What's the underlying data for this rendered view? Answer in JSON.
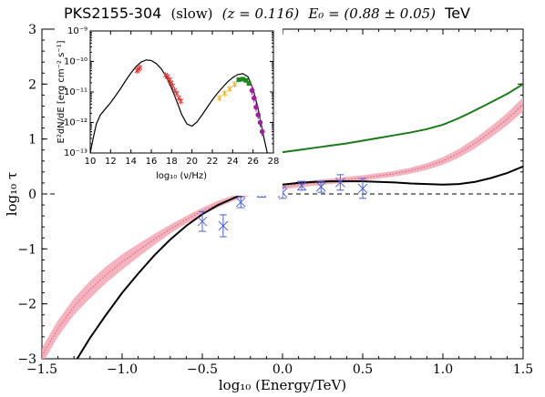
{
  "chart_data": [
    {
      "type": "line",
      "title": {
        "source": "PKS2155-304",
        "state": "(slow)",
        "redshift": "(z = 0.116)",
        "threshold": "E₀ = (0.88 ± 0.05)",
        "unit": "TeV"
      },
      "xlabel": "log₁₀ (Energy/TeV)",
      "ylabel": "log₁₀ τ",
      "xlim": [
        -1.5,
        1.5
      ],
      "ylim": [
        -3,
        3
      ],
      "xticks": [
        "−1.5",
        "−1.0",
        "−0.5",
        "0.0",
        "0.5",
        "1.0",
        "1.5"
      ],
      "yticks": [
        "−3",
        "−2",
        "−1",
        "0",
        "1",
        "2",
        "3"
      ],
      "reference_line": {
        "y": 0,
        "style": "dashed",
        "color": "#000000"
      },
      "band": {
        "color": "#f4a6b4",
        "median_color": "#c0606e",
        "x": [
          -1.5,
          -1.4,
          -1.3,
          -1.2,
          -1.1,
          -1.0,
          -0.9,
          -0.8,
          -0.7,
          -0.6,
          -0.5,
          -0.4,
          -0.3,
          -0.2,
          -0.1,
          0.0,
          0.1,
          0.2,
          0.3,
          0.4,
          0.5,
          0.6,
          0.7,
          0.8,
          0.9,
          1.0,
          1.1,
          1.2,
          1.3,
          1.4,
          1.5
        ],
        "lower": [
          -3.1,
          -2.6,
          -2.2,
          -1.9,
          -1.62,
          -1.38,
          -1.15,
          -0.93,
          -0.72,
          -0.54,
          -0.38,
          -0.24,
          -0.12,
          -0.03,
          0.03,
          0.08,
          0.12,
          0.15,
          0.18,
          0.21,
          0.24,
          0.28,
          0.32,
          0.37,
          0.44,
          0.53,
          0.66,
          0.83,
          1.03,
          1.25,
          1.5
        ],
        "median": [
          -2.95,
          -2.45,
          -2.05,
          -1.74,
          -1.47,
          -1.24,
          -1.03,
          -0.83,
          -0.64,
          -0.47,
          -0.31,
          -0.18,
          -0.07,
          0.02,
          0.08,
          0.13,
          0.17,
          0.2,
          0.23,
          0.26,
          0.29,
          0.33,
          0.37,
          0.43,
          0.5,
          0.6,
          0.74,
          0.92,
          1.13,
          1.36,
          1.63
        ],
        "upper": [
          -2.8,
          -2.3,
          -1.9,
          -1.58,
          -1.32,
          -1.1,
          -0.91,
          -0.73,
          -0.56,
          -0.4,
          -0.25,
          -0.12,
          -0.02,
          0.07,
          0.13,
          0.18,
          0.22,
          0.25,
          0.28,
          0.31,
          0.34,
          0.38,
          0.42,
          0.48,
          0.56,
          0.67,
          0.82,
          1.01,
          1.23,
          1.47,
          1.76
        ]
      },
      "series": [
        {
          "color": "#000000",
          "x": [
            -1.28,
            -1.2,
            -1.1,
            -1.0,
            -0.9,
            -0.8,
            -0.7,
            -0.6,
            -0.5,
            -0.4,
            -0.3,
            -0.2,
            -0.1,
            0.0,
            0.1,
            0.2,
            0.3,
            0.4,
            0.5,
            0.6,
            0.7,
            0.8,
            0.9,
            1.0,
            1.1,
            1.2,
            1.3,
            1.4,
            1.5
          ],
          "y": [
            -3.0,
            -2.62,
            -2.2,
            -1.8,
            -1.45,
            -1.12,
            -0.83,
            -0.58,
            -0.37,
            -0.2,
            -0.07,
            0.04,
            0.12,
            0.17,
            0.2,
            0.22,
            0.23,
            0.23,
            0.23,
            0.22,
            0.21,
            0.19,
            0.18,
            0.17,
            0.18,
            0.22,
            0.29,
            0.38,
            0.5
          ]
        },
        {
          "color": "#1a7a1a",
          "x": [
            0.0,
            0.1,
            0.2,
            0.3,
            0.4,
            0.5,
            0.6,
            0.7,
            0.8,
            0.9,
            1.0,
            1.1,
            1.2,
            1.3,
            1.4,
            1.5
          ],
          "y": [
            0.76,
            0.8,
            0.84,
            0.88,
            0.92,
            0.97,
            1.02,
            1.07,
            1.12,
            1.18,
            1.26,
            1.38,
            1.52,
            1.67,
            1.82,
            2.0
          ]
        }
      ],
      "points": {
        "color": "#5060e0",
        "x": [
          -0.5,
          -0.37,
          -0.26,
          -0.13,
          0.0,
          0.12,
          0.24,
          0.36,
          0.5
        ],
        "y": [
          -0.5,
          -0.58,
          -0.15,
          0.02,
          0.02,
          0.15,
          0.13,
          0.21,
          0.1
        ],
        "yerr": [
          0.18,
          0.2,
          0.1,
          0.08,
          0.1,
          0.08,
          0.1,
          0.14,
          0.18
        ],
        "xerr": [
          0.03,
          0.03,
          0.03,
          0.03,
          0.03,
          0.03,
          0.03,
          0.03,
          0.03
        ]
      }
    },
    {
      "type": "line",
      "title": "",
      "xlabel": "log₁₀ (ν/Hz)",
      "ylabel": "E²dN/dE [erg cm⁻² s⁻¹]",
      "xlim": [
        10,
        28
      ],
      "ylim_log10": [
        -13,
        -9
      ],
      "xticks": [
        "10",
        "12",
        "14",
        "16",
        "18",
        "20",
        "22",
        "24",
        "26",
        "28"
      ],
      "yticks": [
        "10⁻¹³",
        "10⁻¹²",
        "10⁻¹¹",
        "10⁻¹⁰",
        "10⁻⁹"
      ],
      "model": {
        "color": "#000000",
        "x": [
          10.0,
          10.3,
          10.6,
          11.0,
          11.5,
          12.0,
          12.5,
          13.0,
          13.5,
          14.0,
          14.5,
          15.0,
          15.5,
          16.0,
          16.5,
          17.0,
          17.5,
          18.0,
          18.5,
          19.0,
          19.5,
          20.0,
          20.5,
          21.0,
          21.5,
          22.0,
          22.5,
          23.0,
          23.5,
          24.0,
          24.5,
          25.0,
          25.5,
          26.0,
          26.5,
          27.0,
          27.4
        ],
        "y_log10": [
          -13.0,
          -12.5,
          -12.05,
          -11.75,
          -11.55,
          -11.35,
          -11.12,
          -10.88,
          -10.62,
          -10.38,
          -10.17,
          -10.02,
          -9.95,
          -9.97,
          -10.07,
          -10.25,
          -10.52,
          -10.88,
          -11.3,
          -11.75,
          -12.05,
          -12.12,
          -11.98,
          -11.75,
          -11.5,
          -11.26,
          -11.04,
          -10.85,
          -10.67,
          -10.53,
          -10.43,
          -10.4,
          -10.5,
          -10.9,
          -11.55,
          -12.4,
          -13.0
        ]
      },
      "data_groups": [
        {
          "color": "#e83030",
          "marker": "x",
          "x": [
            14.6,
            14.75,
            14.9
          ],
          "y_log10": [
            -10.3,
            -10.25,
            -10.2
          ]
        },
        {
          "color": "#e83030",
          "marker": "x",
          "x": [
            17.4,
            17.6,
            17.8,
            17.95,
            18.1,
            18.3,
            18.5,
            18.7,
            18.9
          ],
          "y_log10": [
            -10.45,
            -10.5,
            -10.6,
            -10.7,
            -10.8,
            -10.95,
            -11.05,
            -11.2,
            -11.3
          ]
        },
        {
          "color": "#f0b020",
          "marker": "x",
          "x": [
            22.7,
            23.2,
            23.7,
            24.2
          ],
          "y_log10": [
            -11.2,
            -11.05,
            -10.9,
            -10.75
          ]
        },
        {
          "color": "#1a8a1a",
          "marker": "s",
          "x": [
            24.6,
            25.0,
            25.3,
            25.6
          ],
          "y_log10": [
            -10.6,
            -10.58,
            -10.62,
            -10.72
          ]
        },
        {
          "color": "#a020a0",
          "marker": "o",
          "x": [
            25.9,
            26.1,
            26.3,
            26.5,
            26.7,
            26.9
          ],
          "y_log10": [
            -10.95,
            -11.2,
            -11.5,
            -11.75,
            -12.0,
            -12.3
          ]
        }
      ]
    }
  ]
}
